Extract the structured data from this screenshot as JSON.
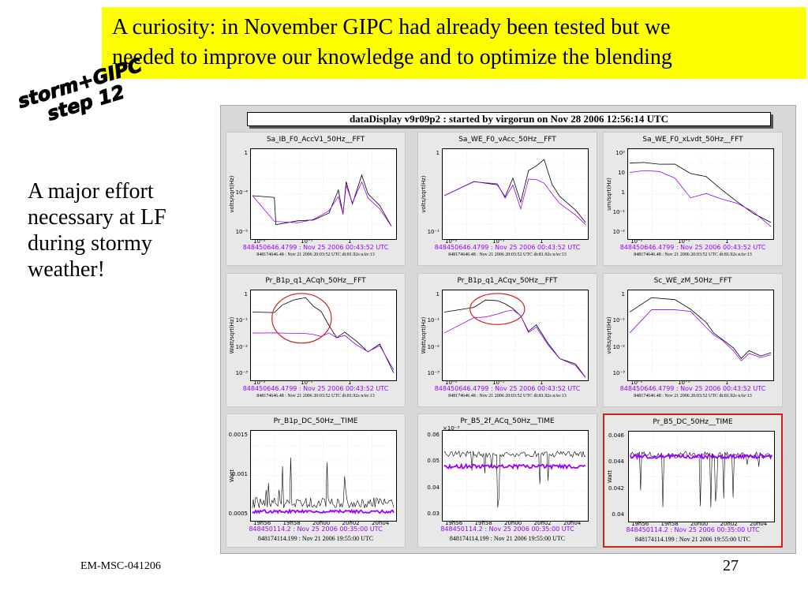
{
  "banner": {
    "line1": "A curiosity: in November GIPC had already been tested but we",
    "line2": "needed to improve our knowledge and to optimize the blending"
  },
  "storm_label": {
    "line1": "storm+GIPC",
    "line2": "step 12"
  },
  "side_text": "A major effort necessary at LF during stormy weather!",
  "footer": {
    "left": "EM-MSC-041206",
    "page": "27"
  },
  "colors": {
    "banner": "#ffff00",
    "trace_black": "#000000",
    "trace_purple": "#9a00ff",
    "highlight": "#d22020"
  },
  "data_display": {
    "title": "dataDisplay v9r09p2 : started by virgorun on Nov 28 2006 12:56:14 UTC",
    "panels": [
      {
        "name": "Sa_IB_F0_AccV1_50Hz__FFT",
        "ylabel": "volts/sqrt(Hz)",
        "yticks": [
          "1",
          "10⁻⁴",
          "10⁻⁵"
        ],
        "xticks": [
          "10⁻²",
          "10⁻¹",
          "1"
        ],
        "ts1": "848450646.4799 : Nov 25 2006 00:43:52 UTC",
        "ts2": "848174646.48 : Nov 21 2006 20:03:52 UTC dt:81.92s nAv:13"
      },
      {
        "name": "Sa_WE_F0_vAcc_50Hz__FFT",
        "ylabel": "volts/sqrt(Hz)",
        "yticks": [
          "1",
          "10⁻¹"
        ],
        "xticks": [
          "10⁻²",
          "10⁻¹",
          "1"
        ],
        "ts1": "848450646.4799 : Nov 25 2006 00:43:52 UTC",
        "ts2": "848174646.48 : Nov 21 2006 20:03:52 UTC dt:81.92s nAv:13"
      },
      {
        "name": "Sa_WE_F0_xLvdt_50Hz__FFT",
        "ylabel": "um/sqrt(Hz)",
        "yticks": [
          "10²",
          "10",
          "1",
          "10⁻¹",
          "10⁻²"
        ],
        "xticks": [
          "10⁻²",
          "10⁻¹",
          "1"
        ],
        "ts1": "848450646.4799 : Nov 25 2006 00:43:52 UTC",
        "ts2": "848174646.48 : Nov 21 2006 20:03:52 UTC dt:81.92s nAv:13"
      },
      {
        "name": "Pr_B1p_q1_ACqh_50Hz__FFT",
        "ylabel": "Watt/sqrt(Hz)",
        "yticks": [
          "1",
          "10⁻¹",
          "10⁻²",
          "10⁻³"
        ],
        "xticks": [
          "10⁻²",
          "10⁻¹",
          "1"
        ],
        "ts1": "848450646.4799 : Nov 25 2006 00:43:52 UTC",
        "ts2": "848174646.48 : Nov 21 2006 20:03:52 UTC dt:81.92s nAv:13"
      },
      {
        "name": "Pr_B1p_q1_ACqv_50Hz__FFT",
        "ylabel": "Watt/sqrt(Hz)",
        "yticks": [
          "1",
          "10⁻¹",
          "10⁻²",
          "10⁻³"
        ],
        "xticks": [
          "10⁻²",
          "10⁻¹",
          "1"
        ],
        "ts1": "848450646.4799 : Nov 25 2006 00:43:52 UTC",
        "ts2": "848174646.48 : Nov 21 2006 20:03:52 UTC dt:81.92s nAv:13"
      },
      {
        "name": "Sc_WE_zM_50Hz__FFT",
        "ylabel": "volts/sqrt(Hz)",
        "yticks": [
          "1",
          "10⁻¹",
          "10⁻²",
          "10⁻³"
        ],
        "xticks": [
          "10⁻²",
          "10⁻¹",
          "1"
        ],
        "ts1": "848450646.4799 : Nov 25 2006 00:43:52 UTC",
        "ts2": "848174646.48 : Nov 21 2006 20:03:52 UTC dt:81.92s nAv:13"
      },
      {
        "name": "Pr_B1p_DC_50Hz__TIME",
        "ylabel": "Watt",
        "yticks": [
          "0.0015",
          "0.001",
          "0.0005"
        ],
        "xticks": [
          "19h56",
          "19h58",
          "20h00",
          "20h02",
          "20h04"
        ],
        "ts1": "848450114.2 : Nov 25 2006 00:35:00 UTC",
        "ts2": "848174114.199 : Nov 21 2006 19:55:00 UTC"
      },
      {
        "name": "Pr_B5_2f_ACq_50Hz__TIME",
        "ylabel": "",
        "exponent": "×10⁻³",
        "yticks": [
          "0.06",
          "0.05",
          "0.04",
          "0.03"
        ],
        "xticks": [
          "19h56",
          "19h58",
          "20h00",
          "20h02",
          "20h04"
        ],
        "ts1": "848450114.2 : Nov 25 2006 00:35:00 UTC",
        "ts2": "848174114.199 : Nov 21 2006 19:55:00 UTC"
      },
      {
        "name": "Pr_B5_DC_50Hz__TIME",
        "ylabel": "Watt",
        "yticks": [
          "0.046",
          "0.044",
          "0.042",
          "0.04"
        ],
        "xticks": [
          "19h56",
          "19h58",
          "20h00",
          "20h02",
          "20h04"
        ],
        "ts1": "848450114.2 : Nov 25 2006 00:35:00 UTC",
        "ts2": "848174114.199 : Nov 21 2006 19:55:00 UTC"
      }
    ]
  }
}
